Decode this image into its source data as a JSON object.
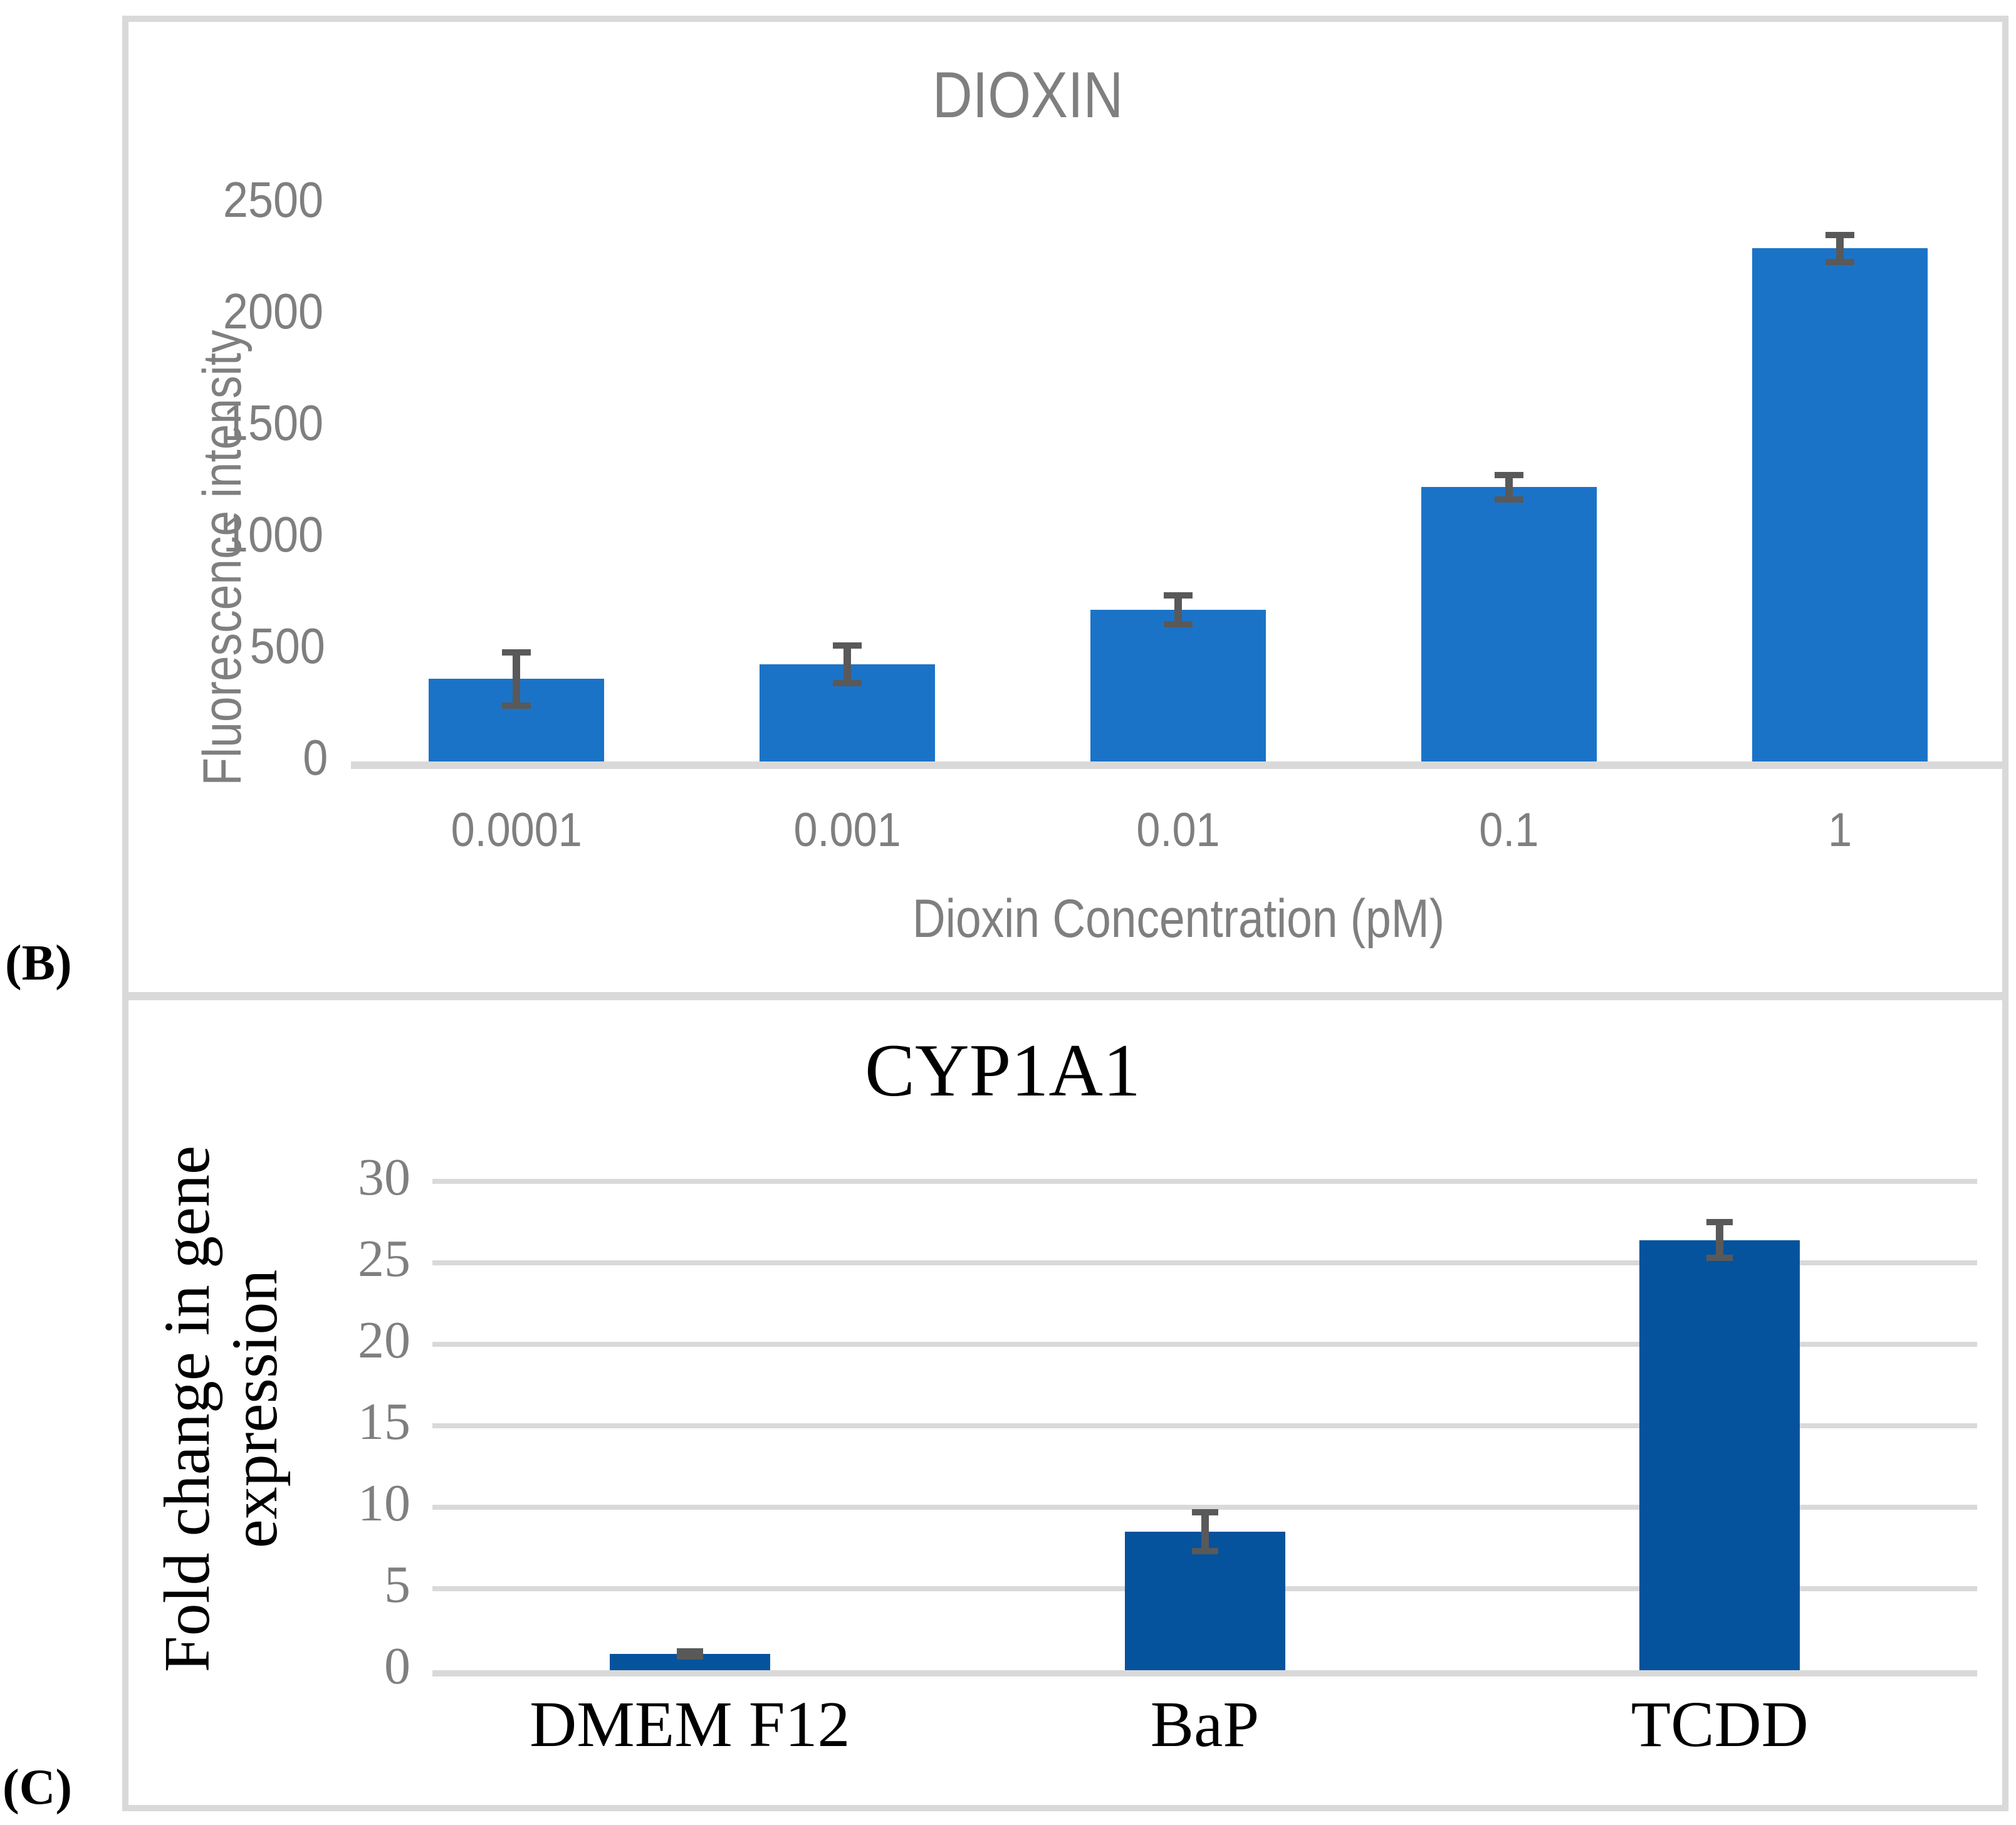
{
  "figure": {
    "panel_labels": [
      "(B)",
      "(C)"
    ]
  },
  "colors": {
    "top_bar": "#1b73c8",
    "bottom_bar": "#05539d",
    "error_bar": "#595959",
    "axis_text_gray": "#7f7f7f",
    "grid_and_frame": "#d9d9d9",
    "black_text": "#000000"
  },
  "chart_data": [
    {
      "type": "bar",
      "title": "DIOXIN",
      "xlabel": "Dioxin Concentration (pM)",
      "ylabel": "Fluorescence intensity",
      "categories": [
        "0.0001",
        "0.001",
        "0.01",
        "0.1",
        "1"
      ],
      "values": [
        370,
        435,
        680,
        1230,
        2300
      ],
      "errors": [
        120,
        85,
        65,
        55,
        60
      ],
      "ylim": [
        0,
        2500
      ],
      "ytick_step": 500,
      "grid": false,
      "legend": "none",
      "bar_color": "#1b73c8",
      "error_color": "#595959",
      "text_color": "#7f7f7f",
      "axis_line_color": "#d9d9d9"
    },
    {
      "type": "bar",
      "title": "CYP1A1",
      "xlabel": "",
      "ylabel": "Fold change in gene expression",
      "categories": [
        "DMEM F12",
        "BaP",
        "TCDD"
      ],
      "values": [
        1,
        8.5,
        26.4
      ],
      "errors": [
        0.15,
        1.2,
        1.1
      ],
      "ylim": [
        0,
        30
      ],
      "ytick_step": 5,
      "grid": true,
      "legend": "none",
      "bar_color": "#05539d",
      "error_color": "#595959",
      "text_color": "#7f7f7f",
      "grid_color": "#d9d9d9"
    }
  ]
}
